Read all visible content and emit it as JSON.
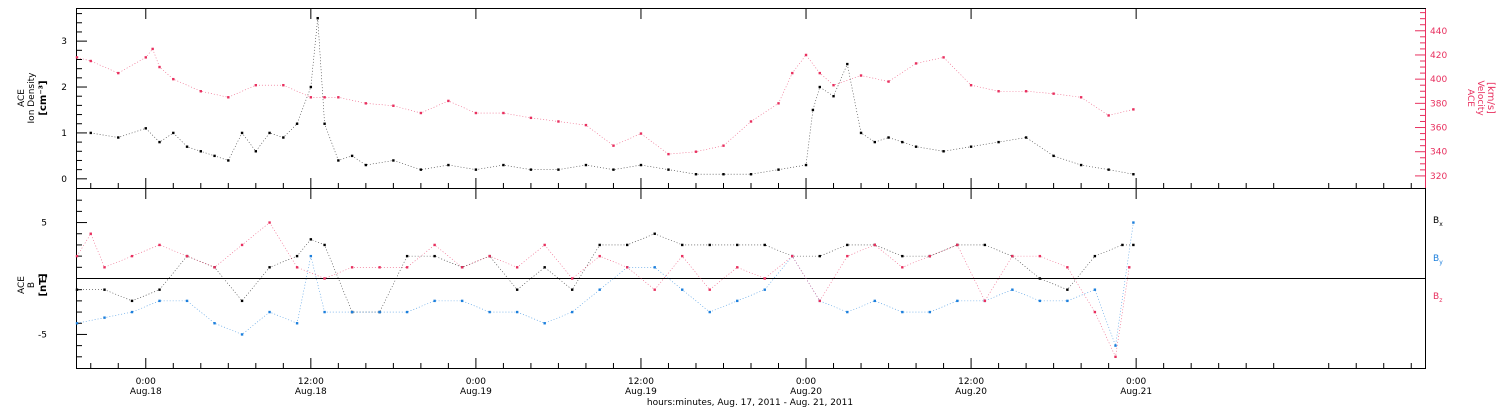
{
  "colors": {
    "black": "#000000",
    "pink": "#e8305f",
    "blue": "#1c7fdc"
  },
  "chart_data": [
    {
      "type": "scatter",
      "panel": "top",
      "ylabel_left": [
        "ACE",
        "Ion Density",
        "[cm⁻³]"
      ],
      "ylabel_right": [
        "ACE",
        "Velocity",
        "[km/s]"
      ],
      "yticks_left": [
        "0",
        "1",
        "2",
        "3"
      ],
      "ylim_left": [
        -0.2,
        3.7
      ],
      "yticks_right": [
        "320",
        "340",
        "360",
        "380",
        "400",
        "420",
        "440"
      ],
      "ylim_right": [
        310,
        458
      ],
      "xlim_hours": [
        -5,
        93
      ],
      "series": [
        {
          "color": "black",
          "axis": "left",
          "x": [
            -4,
            -2,
            0,
            1,
            2,
            3,
            4,
            5,
            6,
            7,
            8,
            9,
            10,
            11,
            12,
            12.5,
            13,
            14,
            15,
            16,
            18,
            20,
            22,
            24,
            26,
            28,
            30,
            32,
            34,
            36,
            38,
            40,
            42,
            44,
            46,
            48,
            48.5,
            49,
            50,
            51,
            52,
            53,
            54,
            55,
            56,
            58,
            60,
            62,
            64,
            66,
            68,
            70,
            71.8
          ],
          "y": [
            1.0,
            0.9,
            1.1,
            0.8,
            1.0,
            0.7,
            0.6,
            0.5,
            0.4,
            1.0,
            0.6,
            1.0,
            0.9,
            1.2,
            2.0,
            3.5,
            1.2,
            0.4,
            0.5,
            0.3,
            0.4,
            0.2,
            0.3,
            0.2,
            0.3,
            0.2,
            0.2,
            0.3,
            0.2,
            0.3,
            0.2,
            0.1,
            0.1,
            0.1,
            0.2,
            0.3,
            1.5,
            2.0,
            1.8,
            2.5,
            1.0,
            0.8,
            0.9,
            0.8,
            0.7,
            0.6,
            0.7,
            0.8,
            0.9,
            0.5,
            0.3,
            0.2,
            0.1
          ]
        },
        {
          "color": "pink",
          "axis": "right",
          "x": [
            -5,
            -4,
            -2,
            0,
            0.5,
            1,
            2,
            4,
            6,
            8,
            10,
            12,
            13,
            14,
            16,
            18,
            20,
            22,
            24,
            26,
            28,
            30,
            32,
            34,
            36,
            38,
            40,
            42,
            44,
            46,
            47,
            48,
            49,
            50,
            52,
            54,
            56,
            58,
            60,
            62,
            64,
            66,
            68,
            70,
            71.8
          ],
          "y": [
            418,
            415,
            405,
            418,
            425,
            410,
            400,
            390,
            385,
            395,
            395,
            385,
            385,
            385,
            380,
            378,
            372,
            382,
            372,
            372,
            368,
            365,
            362,
            345,
            355,
            338,
            340,
            345,
            365,
            380,
            405,
            420,
            405,
            395,
            403,
            398,
            413,
            418,
            395,
            390,
            390,
            388,
            385,
            370,
            375
          ]
        }
      ]
    },
    {
      "type": "scatter",
      "panel": "bottom",
      "ylabel_left": [
        "ACE",
        "B",
        "[nT]"
      ],
      "yticks_left": [
        "-5",
        "0",
        "5"
      ],
      "ylim": [
        -8,
        8
      ],
      "xlim_hours": [
        -5,
        93
      ],
      "legend": [
        "Bx",
        "By",
        "Bz"
      ],
      "series": [
        {
          "color": "black",
          "x": [
            -5,
            -3,
            -1,
            1,
            3,
            5,
            7,
            9,
            11,
            12,
            13,
            15,
            17,
            19,
            21,
            23,
            25,
            27,
            29,
            31,
            33,
            35,
            37,
            39,
            41,
            43,
            45,
            47,
            49,
            51,
            53,
            55,
            57,
            59,
            61,
            63,
            65,
            67,
            69,
            71,
            71.8
          ],
          "y": [
            -1,
            -1,
            -2,
            -1,
            2,
            1,
            -2,
            1,
            2,
            3.5,
            3,
            -3,
            -3,
            2,
            2,
            1,
            2,
            -1,
            1,
            -1,
            3,
            3,
            4,
            3,
            3,
            3,
            3,
            2,
            2,
            3,
            3,
            2,
            2,
            3,
            3,
            2,
            0,
            -1,
            2,
            3,
            3
          ]
        },
        {
          "color": "blue",
          "x": [
            -5,
            -3,
            -1,
            1,
            3,
            5,
            7,
            9,
            11,
            12,
            13,
            15,
            17,
            19,
            21,
            23,
            25,
            27,
            29,
            31,
            33,
            35,
            37,
            39,
            41,
            43,
            45,
            47,
            49,
            51,
            53,
            55,
            57,
            59,
            61,
            63,
            65,
            67,
            69,
            70.5,
            71.8
          ],
          "y": [
            -4,
            -3.5,
            -3,
            -2,
            -2,
            -4,
            -5,
            -3,
            -4,
            2,
            -3,
            -3,
            -3,
            -3,
            -2,
            -2,
            -3,
            -3,
            -4,
            -3,
            -1,
            1,
            1,
            -1,
            -3,
            -2,
            -1,
            2,
            -2,
            -3,
            -2,
            -3,
            -3,
            -2,
            -2,
            -1,
            -2,
            -2,
            -1,
            -6,
            5
          ]
        },
        {
          "color": "pink",
          "x": [
            -5,
            -4,
            -3,
            -1,
            1,
            3,
            5,
            7,
            9,
            11,
            13,
            15,
            17,
            19,
            21,
            23,
            25,
            27,
            29,
            31,
            33,
            35,
            37,
            39,
            41,
            43,
            45,
            47,
            49,
            51,
            53,
            55,
            57,
            59,
            61,
            63,
            65,
            67,
            69,
            70.5,
            71.5
          ],
          "y": [
            2,
            4,
            1,
            2,
            3,
            2,
            1,
            3,
            5,
            1,
            0,
            1,
            1,
            1,
            3,
            1,
            2,
            1,
            3,
            0,
            2,
            1,
            -1,
            2,
            -1,
            1,
            0,
            2,
            -2,
            2,
            3,
            1,
            2,
            3,
            -2,
            2,
            2,
            1,
            -3,
            -7,
            1
          ]
        }
      ]
    }
  ],
  "x_axis": {
    "ticks": [
      {
        "hour": 0,
        "time": "0:00",
        "date": "Aug.18"
      },
      {
        "hour": 12,
        "time": "12:00",
        "date": "Aug.18"
      },
      {
        "hour": 24,
        "time": "0:00",
        "date": "Aug.19"
      },
      {
        "hour": 36,
        "time": "12:00",
        "date": "Aug.19"
      },
      {
        "hour": 48,
        "time": "0:00",
        "date": "Aug.20"
      },
      {
        "hour": 60,
        "time": "12:00",
        "date": "Aug.20"
      },
      {
        "hour": 72,
        "time": "0:00",
        "date": "Aug.21"
      }
    ],
    "title": "hours:minutes, Aug. 17, 2011 - Aug. 21, 2011"
  },
  "legend_labels": {
    "bx_main": "B",
    "bx_sub": "x",
    "by_main": "B",
    "by_sub": "y",
    "bz_main": "B",
    "bz_sub": "z"
  }
}
